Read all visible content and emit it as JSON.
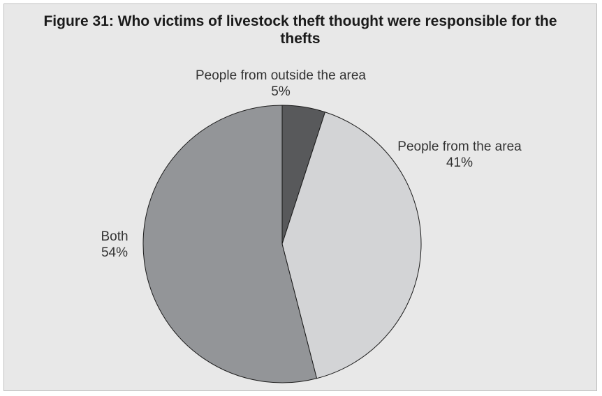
{
  "chart_data": {
    "type": "pie",
    "title": "Figure 31: Who victims of livestock theft thought were responsible for the thefts",
    "slices": [
      {
        "label": "People from outside the area",
        "value": 5,
        "value_label": "5%",
        "color": "#58595b"
      },
      {
        "label": "People from the area",
        "value": 41,
        "value_label": "41%",
        "color": "#d3d4d6"
      },
      {
        "label": "Both",
        "value": 54,
        "value_label": "54%",
        "color": "#939598"
      }
    ],
    "start": "12 o'clock",
    "direction": "clockwise",
    "legend": "none"
  }
}
